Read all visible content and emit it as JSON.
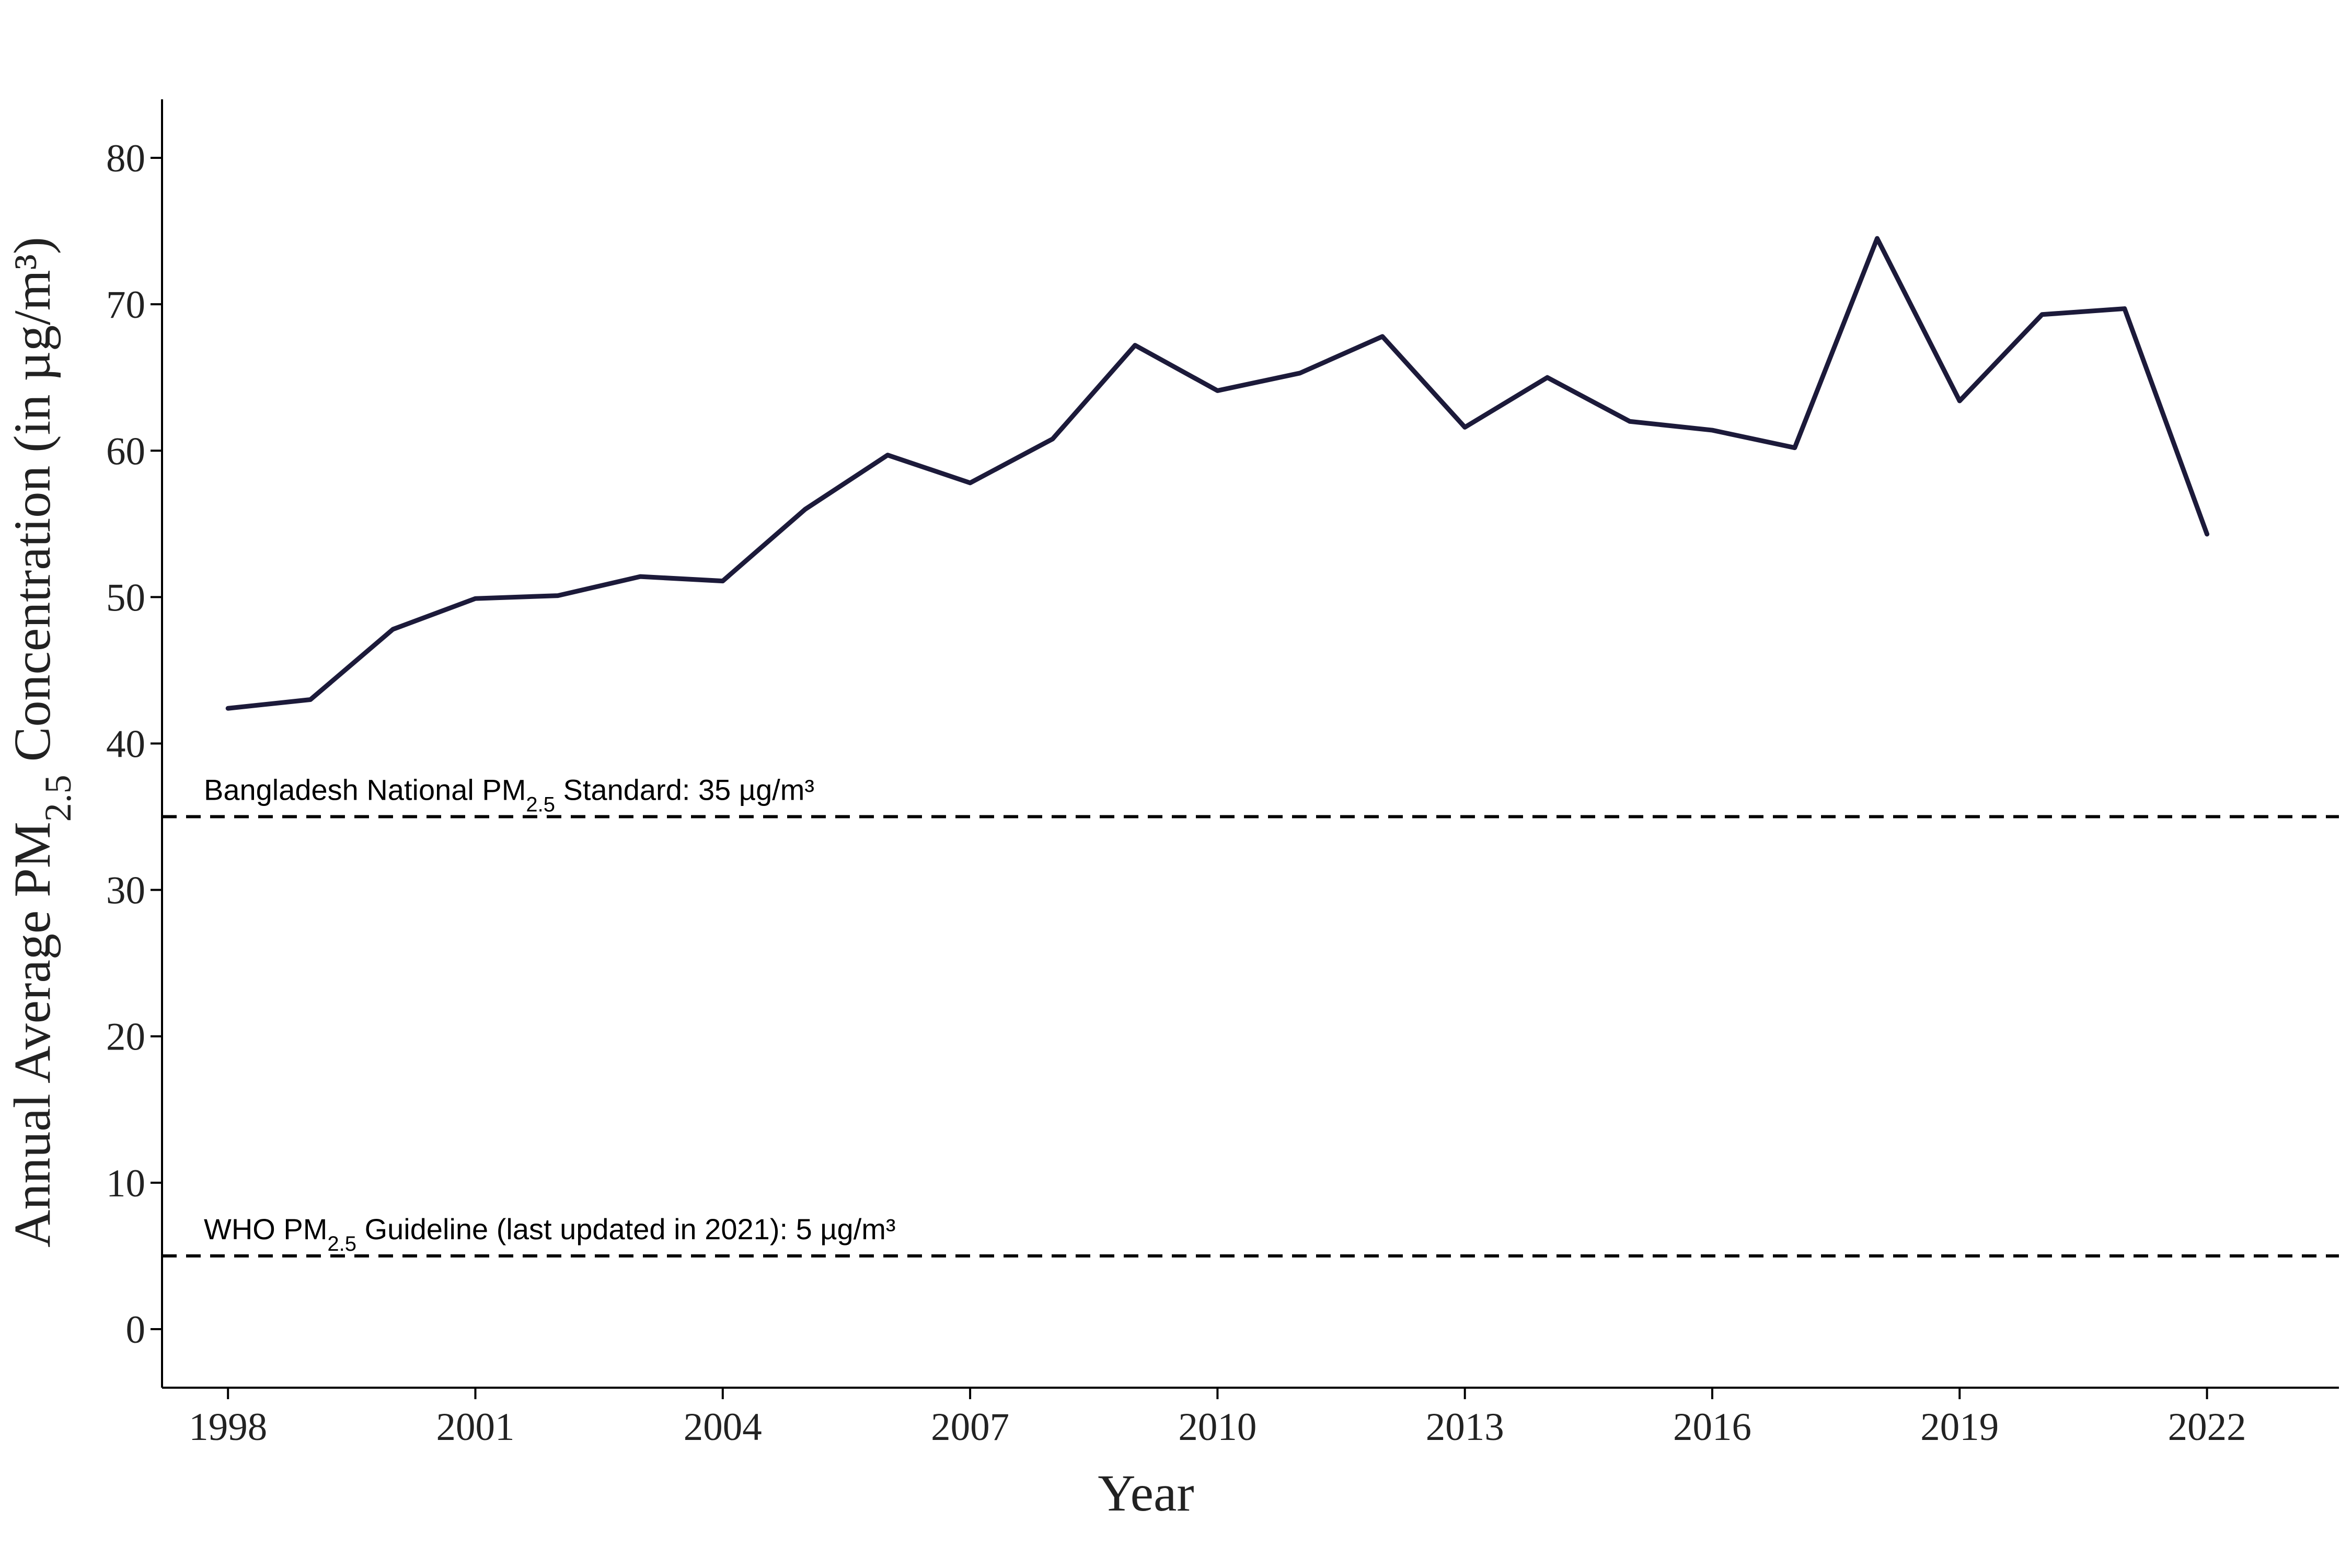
{
  "chart_data": {
    "type": "line",
    "title": "",
    "xlabel": "Year",
    "ylabel": {
      "prefix": "Annual Average",
      "pm": "PM",
      "sub": "2.5",
      "suffix": "Concentration (in µg/m³)"
    },
    "x": [
      1998,
      1999,
      2000,
      2001,
      2002,
      2003,
      2004,
      2005,
      2006,
      2007,
      2008,
      2009,
      2010,
      2011,
      2012,
      2013,
      2014,
      2015,
      2016,
      2017,
      2018,
      2019,
      2020,
      2021,
      2022
    ],
    "series": [
      {
        "values": [
          42.4,
          43.0,
          47.8,
          49.9,
          50.1,
          51.4,
          51.1,
          56.0,
          59.7,
          57.8,
          60.8,
          67.2,
          64.1,
          65.3,
          67.8,
          61.6,
          65.0,
          62.0,
          61.4,
          60.2,
          74.5,
          63.4,
          69.3,
          69.7,
          54.3
        ],
        "color": "#1c1a3a"
      }
    ],
    "xticks": [
      "1998",
      "2001",
      "2004",
      "2007",
      "2010",
      "2013",
      "2016",
      "2019",
      "2022"
    ],
    "yticks": [
      "0",
      "10",
      "20",
      "30",
      "40",
      "50",
      "60",
      "70",
      "80"
    ],
    "xlim": [
      1997.2,
      2023.6
    ],
    "ylim": [
      -4,
      84
    ],
    "grid": false,
    "reference_lines": [
      {
        "value": 35,
        "label_prefix": "Bangladesh National PM",
        "label_sub": "2.5",
        "label_suffix": " Standard: 35 µg/m³",
        "style": "dashed",
        "color": "#000000"
      },
      {
        "value": 5,
        "label_prefix": "WHO  PM",
        "label_sub": "2.5",
        "label_suffix": "  Guideline (last updated in 2021): 5 µg/m³",
        "style": "dashed",
        "color": "#000000"
      }
    ]
  }
}
